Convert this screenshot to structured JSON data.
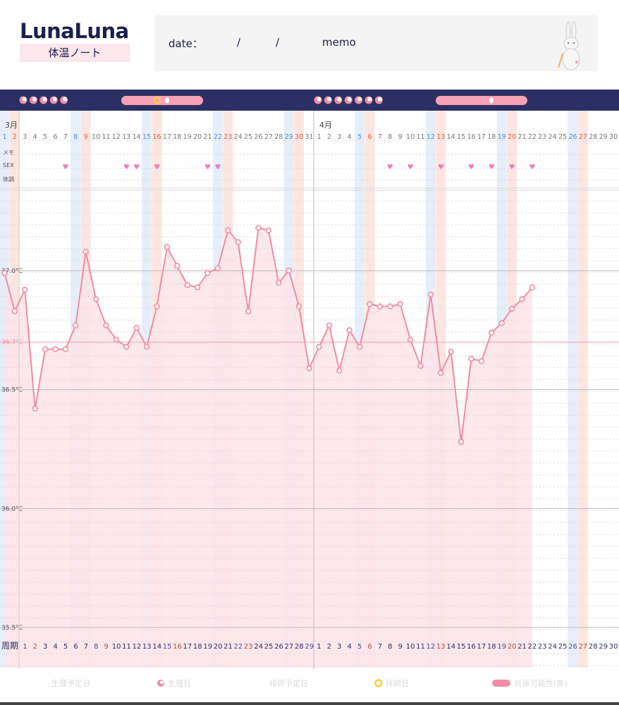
{
  "header": {
    "logo": "LunaLuna",
    "logo_sub": "体温ノート",
    "date_label": "date：",
    "slash": "/",
    "memo_label": "memo",
    "mascot": "rabbit-icon"
  },
  "colors": {
    "topbar": "#2c2f63",
    "line": "#f08ca3",
    "fill": "#fde4e9",
    "blue_stripe": "#e6eefa",
    "pink_stripe": "#fde6e1",
    "heart": "#f07cc0",
    "fertile_pill": "#f7a1b6"
  },
  "row_labels": [
    "メモ",
    "SEX",
    "体調"
  ],
  "cycle_label": "周期",
  "legend": [
    "生理予定日",
    "生理日",
    "排卵予定日",
    "排卵日",
    "妊娠可能性(高)"
  ],
  "chart_data": {
    "type": "line",
    "title": "",
    "xlabel": "",
    "ylabel": "",
    "ylim": [
      35.5,
      37.0
    ],
    "y_ticks": [
      "37.0℃",
      "36.7℃",
      "36.5℃",
      "36.0℃",
      "35.5℃"
    ],
    "y_tick_values": [
      37.0,
      36.7,
      36.5,
      36.0,
      35.5
    ],
    "reference_line": 36.7,
    "months": [
      {
        "label": "3月",
        "days": 31,
        "weekends": {
          "blue": [
            1,
            8,
            15,
            22,
            29
          ],
          "red": [
            2,
            9,
            16,
            23,
            30
          ]
        },
        "cycle_days": [
          1,
          2,
          3,
          4,
          5,
          6,
          7,
          8,
          9,
          10,
          11,
          12,
          13,
          14,
          15,
          16,
          17,
          18,
          19,
          20,
          21,
          22,
          23,
          24,
          25,
          26,
          27,
          28,
          29
        ],
        "sex_days": [
          7,
          13,
          14,
          16,
          21,
          22
        ]
      },
      {
        "label": "4月",
        "days": 30,
        "weekends": {
          "blue": [
            5,
            12,
            19,
            26
          ],
          "red": [
            6,
            13,
            20,
            27
          ]
        },
        "cycle_days": [
          1,
          2,
          3,
          4,
          5,
          6,
          7,
          8,
          9,
          10,
          11,
          12,
          13,
          14,
          15,
          16,
          17,
          18,
          19,
          20,
          21,
          22,
          23,
          24,
          25,
          26,
          27,
          28,
          29,
          30
        ],
        "sex_days": [
          8,
          10,
          13,
          16,
          18,
          20,
          22
        ]
      }
    ],
    "period_days": {
      "march": 5,
      "april": 7
    },
    "series": [
      {
        "points": [
          {
            "x": "3/1",
            "y": 36.99
          },
          {
            "x": "3/2",
            "y": 36.83
          },
          {
            "x": "3/3",
            "y": 36.92
          },
          {
            "x": "3/4",
            "y": 36.42
          },
          {
            "x": "3/5",
            "y": 36.67
          },
          {
            "x": "3/6",
            "y": 36.67
          },
          {
            "x": "3/7",
            "y": 36.67
          },
          {
            "x": "3/8",
            "y": 36.77
          },
          {
            "x": "3/9",
            "y": 37.08
          },
          {
            "x": "3/10",
            "y": 36.88
          },
          {
            "x": "3/11",
            "y": 36.77
          },
          {
            "x": "3/12",
            "y": 36.71
          },
          {
            "x": "3/13",
            "y": 36.68
          },
          {
            "x": "3/14",
            "y": 36.76
          },
          {
            "x": "3/15",
            "y": 36.68
          },
          {
            "x": "3/16",
            "y": 36.85
          },
          {
            "x": "3/17",
            "y": 37.1
          },
          {
            "x": "3/18",
            "y": 37.02
          },
          {
            "x": "3/19",
            "y": 36.94
          },
          {
            "x": "3/20",
            "y": 36.93
          },
          {
            "x": "3/21",
            "y": 36.99
          },
          {
            "x": "3/22",
            "y": 37.01
          },
          {
            "x": "3/23",
            "y": 37.17
          },
          {
            "x": "3/24",
            "y": 37.12
          },
          {
            "x": "3/25",
            "y": 36.83
          },
          {
            "x": "3/26",
            "y": 37.18
          },
          {
            "x": "3/27",
            "y": 37.17
          },
          {
            "x": "3/28",
            "y": 36.95
          },
          {
            "x": "3/29",
            "y": 37.0
          },
          {
            "x": "3/30",
            "y": 36.85
          },
          {
            "x": "3/31",
            "y": 36.59
          },
          {
            "x": "4/1",
            "y": 36.68
          },
          {
            "x": "4/2",
            "y": 36.77
          },
          {
            "x": "4/3",
            "y": 36.58
          },
          {
            "x": "4/4",
            "y": 36.75
          },
          {
            "x": "4/5",
            "y": 36.68
          },
          {
            "x": "4/6",
            "y": 36.86
          },
          {
            "x": "4/7",
            "y": 36.85
          },
          {
            "x": "4/8",
            "y": 36.85
          },
          {
            "x": "4/9",
            "y": 36.86
          },
          {
            "x": "4/10",
            "y": 36.71
          },
          {
            "x": "4/11",
            "y": 36.6
          },
          {
            "x": "4/12",
            "y": 36.9
          },
          {
            "x": "4/13",
            "y": 36.57
          },
          {
            "x": "4/14",
            "y": 36.66
          },
          {
            "x": "4/15",
            "y": 36.28
          },
          {
            "x": "4/16",
            "y": 36.63
          },
          {
            "x": "4/17",
            "y": 36.62
          },
          {
            "x": "4/18",
            "y": 36.74
          },
          {
            "x": "4/19",
            "y": 36.78
          },
          {
            "x": "4/20",
            "y": 36.84
          },
          {
            "x": "4/21",
            "y": 36.88
          },
          {
            "x": "4/22",
            "y": 36.93
          }
        ]
      }
    ]
  }
}
